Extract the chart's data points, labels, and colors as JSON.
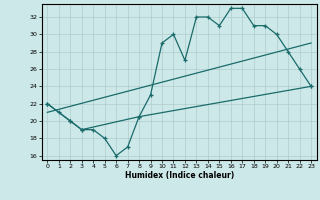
{
  "xlabel": "Humidex (Indice chaleur)",
  "bg_color": "#cde8e8",
  "grid_color": "#b0cccc",
  "line_color": "#1a6b6b",
  "line1_x": [
    0,
    1,
    2,
    3,
    4,
    5,
    6,
    7,
    8,
    9,
    10,
    11,
    12,
    13,
    14,
    15,
    16,
    17,
    18,
    19,
    20,
    21,
    22,
    23
  ],
  "line1_y": [
    22,
    21,
    20,
    19,
    19,
    18,
    16,
    17,
    20.5,
    23,
    29,
    30,
    27,
    32,
    32,
    31,
    33,
    33,
    31,
    31,
    30,
    28,
    26,
    24
  ],
  "line2_x": [
    0,
    2,
    3,
    8,
    23
  ],
  "line2_y": [
    22,
    20,
    19,
    20.5,
    24
  ],
  "line3_x": [
    0,
    23
  ],
  "line3_y": [
    21,
    29
  ],
  "ylim": [
    15.5,
    33.5
  ],
  "xlim": [
    -0.5,
    23.5
  ],
  "yticks": [
    16,
    18,
    20,
    22,
    24,
    26,
    28,
    30,
    32
  ],
  "xticks": [
    0,
    1,
    2,
    3,
    4,
    5,
    6,
    7,
    8,
    9,
    10,
    11,
    12,
    13,
    14,
    15,
    16,
    17,
    18,
    19,
    20,
    21,
    22,
    23
  ]
}
